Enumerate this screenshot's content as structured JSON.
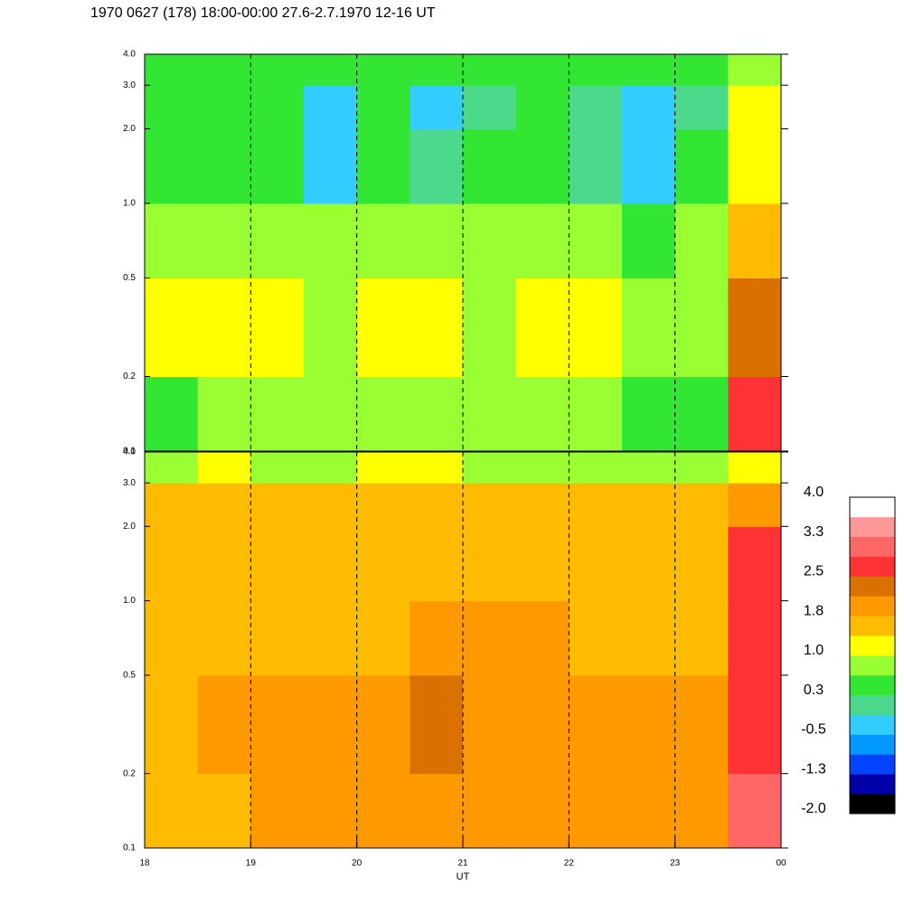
{
  "chart_data": {
    "type": "heatmap",
    "title": "1970 0627 (178) 18:00-00:00 27.6-2.7.1970  12-16 UT",
    "xlabel": "UT",
    "xlim": [
      18,
      24
    ],
    "xticks": [
      18,
      19,
      20,
      21,
      22,
      23,
      {
        "value": 24,
        "label": "00"
      }
    ],
    "x": [
      18,
      18.5,
      19,
      19.5,
      20,
      20.5,
      21,
      21.5,
      22,
      22.5,
      23,
      23.5,
      24
    ],
    "y": [
      0.1,
      0.2,
      0.5,
      1,
      2,
      3,
      4
    ],
    "log_y": true,
    "panels": [
      {
        "ylim": [
          0.1,
          4
        ],
        "yticks": [
          0.1,
          0.2,
          0.5,
          {
            "value": 1,
            "label": "1.0"
          },
          {
            "value": 2,
            "label": "2.0"
          },
          {
            "value": 3,
            "label": "3.0"
          },
          {
            "value": 4,
            "label": "4.0"
          }
        ],
        "z": [
          [
            0.6,
            0.7,
            0.7,
            0.7,
            0.7,
            0.7,
            0.7,
            0.7,
            0.7,
            0.6,
            0.6,
            2.6
          ],
          [
            1.0,
            1.1,
            1.0,
            0.9,
            1.0,
            1.1,
            0.9,
            1.0,
            1.0,
            0.9,
            0.9,
            2.2
          ],
          [
            0.8,
            0.9,
            0.8,
            0.7,
            0.8,
            0.9,
            0.7,
            0.8,
            0.7,
            0.6,
            0.7,
            1.5
          ],
          [
            0.5,
            0.6,
            0.4,
            -0.2,
            0.4,
            0.1,
            0.3,
            0.5,
            0.2,
            -0.3,
            0.4,
            1.2
          ],
          [
            0.3,
            0.4,
            0.3,
            -0.4,
            0.3,
            -0.2,
            0.1,
            0.3,
            0.1,
            -0.4,
            0.2,
            1.0
          ],
          [
            0.4,
            0.5,
            0.4,
            0.3,
            0.4,
            0.3,
            0.4,
            0.4,
            0.4,
            0.3,
            0.4,
            0.9
          ]
        ]
      },
      {
        "ylim": [
          0.1,
          4
        ],
        "yticks": [
          0.1,
          0.2,
          0.5,
          {
            "value": 1,
            "label": "1.0"
          },
          {
            "value": 2,
            "label": "2.0"
          },
          {
            "value": 3,
            "label": "3.0"
          },
          {
            "value": 4,
            "label": "4.0"
          }
        ],
        "z": [
          [
            1.4,
            1.7,
            1.9,
            1.8,
            1.8,
            1.9,
            1.8,
            1.8,
            1.9,
            1.8,
            1.8,
            3.0
          ],
          [
            1.6,
            1.9,
            1.9,
            1.9,
            2.0,
            2.2,
            2.0,
            2.0,
            1.9,
            1.9,
            1.9,
            2.8
          ],
          [
            1.5,
            1.7,
            1.6,
            1.6,
            1.7,
            1.8,
            1.9,
            1.8,
            1.7,
            1.7,
            1.6,
            2.7
          ],
          [
            1.5,
            1.6,
            1.6,
            1.6,
            1.6,
            1.7,
            1.6,
            1.6,
            1.6,
            1.6,
            1.5,
            2.6
          ],
          [
            1.5,
            1.6,
            1.5,
            1.5,
            1.6,
            1.6,
            1.5,
            1.5,
            1.5,
            1.5,
            1.5,
            2.0
          ],
          [
            0.9,
            1.0,
            0.9,
            0.9,
            1.0,
            1.0,
            0.9,
            0.9,
            0.9,
            0.9,
            0.9,
            1.0
          ]
        ]
      }
    ],
    "colorbar": {
      "zlim": [
        -2,
        4
      ],
      "zticks": [
        {
          "value": 4,
          "label": "4.0"
        },
        {
          "value": 3.25,
          "label": "3.3"
        },
        2.5,
        {
          "value": 1.75,
          "label": "1.8"
        },
        {
          "value": 1,
          "label": "1.0"
        },
        {
          "value": 0.25,
          "label": "0.3"
        },
        -0.5,
        {
          "value": -1.25,
          "label": "-1.3"
        },
        {
          "value": -2,
          "label": "-2.0"
        }
      ],
      "colors": [
        "#000000",
        "#0000aa",
        "#0044ff",
        "#0099ff",
        "#33ccff",
        "#4dd98c",
        "#33e633",
        "#99ff33",
        "#ffff00",
        "#ffbb00",
        "#ff9900",
        "#d97000",
        "#ff3333",
        "#ff6666",
        "#ff9999",
        "#ffffff"
      ]
    }
  }
}
